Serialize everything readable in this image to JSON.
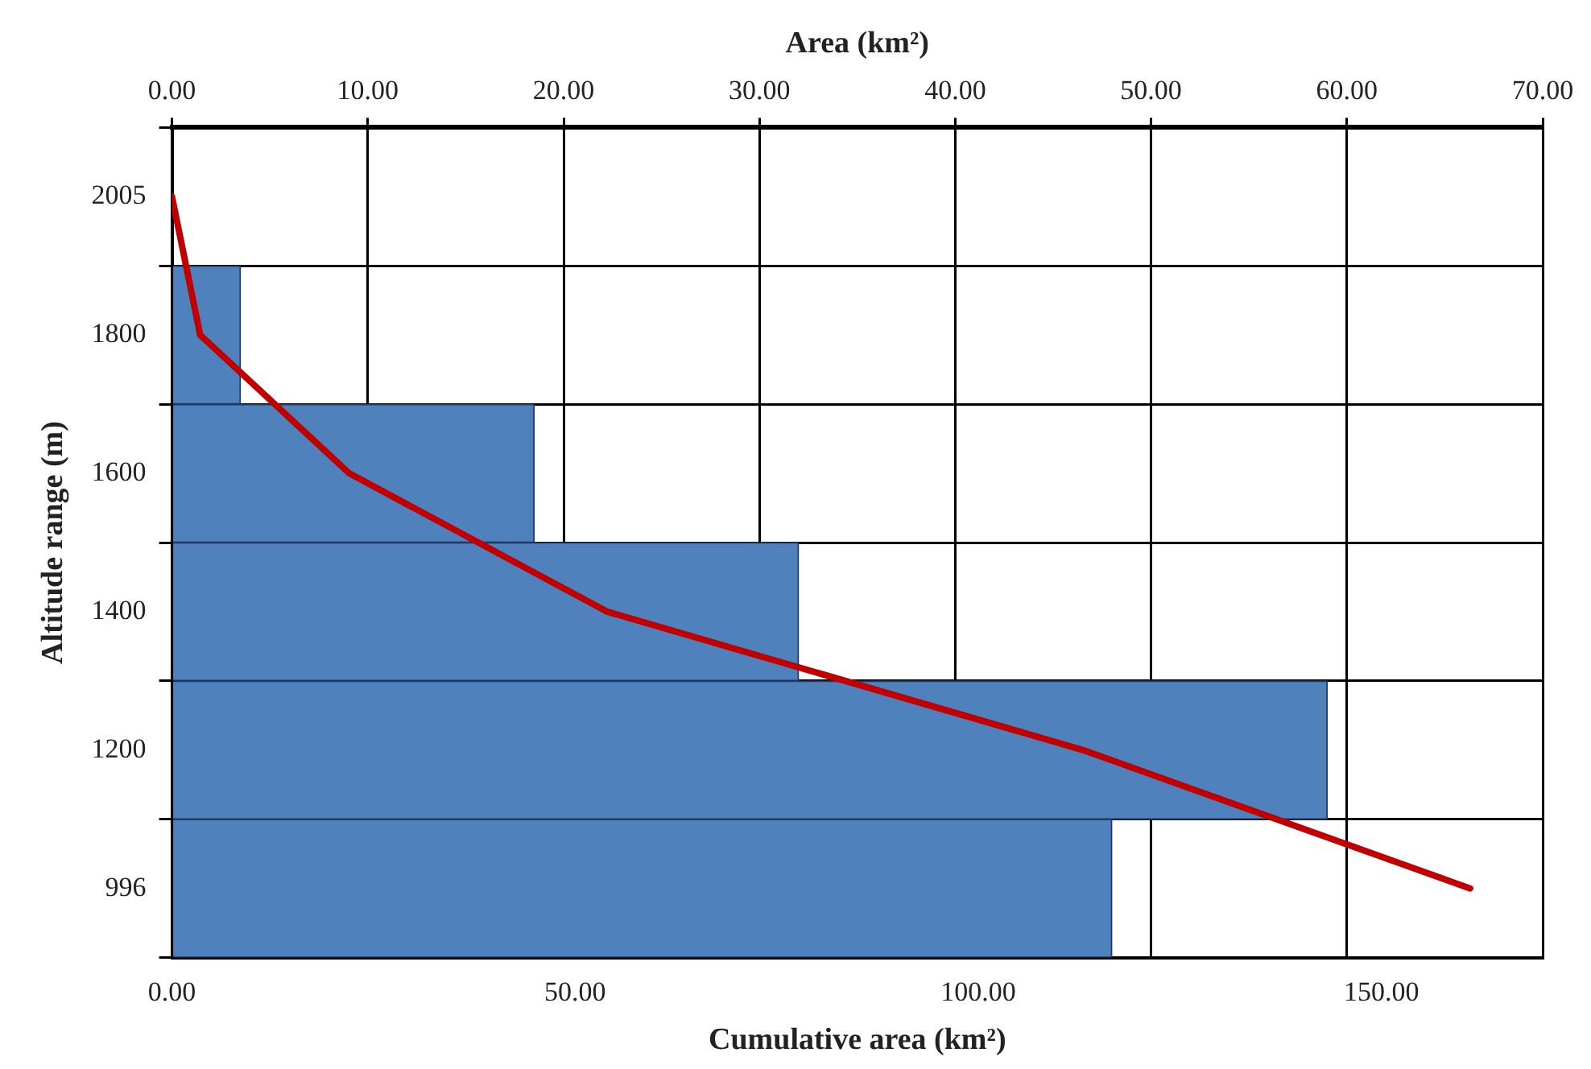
{
  "chart_data": {
    "type": "bar",
    "orientation": "horizontal",
    "ylabel": "Altitude range (m)",
    "xlabel": "Cumulative area (km²)",
    "x2label": "Area (km²)",
    "categories": [
      "2005",
      "1800",
      "1600",
      "1400",
      "1200",
      "996"
    ],
    "series": [
      {
        "type": "bar",
        "axis": "x2",
        "color": "#4f81bd",
        "values": [
          null,
          3.5,
          18.5,
          32,
          59,
          48
        ]
      },
      {
        "type": "line",
        "color": "#c00000",
        "values": [
          0,
          3.5,
          22,
          54,
          113,
          161
        ]
      }
    ],
    "xlim": [
      0,
      170
    ],
    "xticks": [
      {
        "value": 0,
        "label": "0.00"
      },
      {
        "value": 50,
        "label": "50.00"
      },
      {
        "value": 100,
        "label": "100.00"
      },
      {
        "value": 150,
        "label": "150.00"
      }
    ],
    "x2lim": [
      0,
      70
    ],
    "x2ticks": [
      {
        "value": 0,
        "label": "0.00"
      },
      {
        "value": 10,
        "label": "10.00"
      },
      {
        "value": 20,
        "label": "20.00"
      },
      {
        "value": 30,
        "label": "30.00"
      },
      {
        "value": 40,
        "label": "40.00"
      },
      {
        "value": 50,
        "label": "50.00"
      },
      {
        "value": 60,
        "label": "60.00"
      },
      {
        "value": 70,
        "label": "70.00"
      }
    ],
    "grid": true,
    "legend": false,
    "marker": "none",
    "line_style": "solid"
  }
}
